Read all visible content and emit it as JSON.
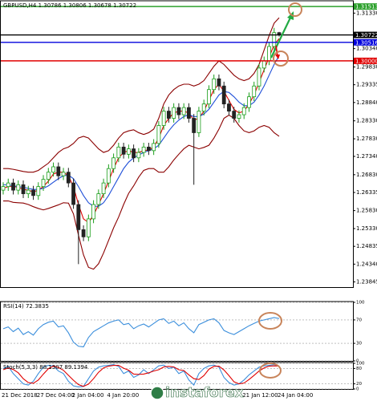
{
  "chart_data": [
    {
      "type": "candlestick",
      "title": "GBPUSD,H4  1.30786 1.30806 1.30678 1.30722",
      "watermark": "instaforex",
      "categories": [
        "21 Dec 2018",
        null,
        null,
        null,
        null,
        null,
        null,
        "27 Dec 04:00",
        null,
        null,
        null,
        null,
        null,
        null,
        "2 Jan 04:00",
        null,
        null,
        null,
        null,
        null,
        null,
        "4 Jan 20:00",
        null,
        null,
        null,
        null,
        null,
        null,
        null,
        null,
        null,
        null,
        null,
        null,
        null,
        null,
        null,
        null,
        null,
        null,
        null,
        null,
        null,
        null,
        null,
        null,
        null,
        null,
        "21 Jan 12:00",
        null,
        null,
        null,
        null,
        null,
        null,
        "24 Jan 04:00"
      ],
      "open": [
        1.264,
        1.265,
        1.266,
        1.264,
        1.2655,
        1.263,
        1.264,
        1.2625,
        1.265,
        1.267,
        1.269,
        1.2705,
        1.268,
        1.269,
        1.266,
        1.26,
        1.253,
        1.251,
        1.256,
        1.26,
        1.263,
        1.266,
        1.27,
        1.273,
        1.276,
        1.274,
        1.2755,
        1.273,
        1.2745,
        1.276,
        1.275,
        1.277,
        1.282,
        1.286,
        1.284,
        1.287,
        1.285,
        1.287,
        1.284,
        1.28,
        1.286,
        1.288,
        1.292,
        1.295,
        1.293,
        1.288,
        1.286,
        1.284,
        1.285,
        1.287,
        1.29,
        1.293,
        1.298,
        1.3,
        1.304,
        1.30786
      ],
      "high": [
        1.2662,
        1.2672,
        1.2672,
        1.2667,
        1.2667,
        1.2652,
        1.2652,
        1.2662,
        1.2682,
        1.2702,
        1.2717,
        1.2717,
        1.2702,
        1.2702,
        1.2672,
        1.2612,
        1.2542,
        1.2572,
        1.2612,
        1.2642,
        1.2672,
        1.2712,
        1.2742,
        1.2772,
        1.2772,
        1.2767,
        1.2767,
        1.2757,
        1.2772,
        1.2772,
        1.2782,
        1.2832,
        1.2872,
        1.2872,
        1.2882,
        1.2882,
        1.2882,
        1.2882,
        1.2852,
        1.2872,
        1.2892,
        1.2932,
        1.2962,
        1.2962,
        1.2942,
        1.2892,
        1.2872,
        1.2862,
        1.2882,
        1.2912,
        1.2942,
        1.2992,
        1.3012,
        1.3052,
        1.3092,
        1.30806
      ],
      "low": [
        1.2628,
        1.2638,
        1.2628,
        1.2628,
        1.2618,
        1.2618,
        1.2613,
        1.2613,
        1.2638,
        1.2658,
        1.2678,
        1.2668,
        1.2668,
        1.2648,
        1.2588,
        1.2434,
        1.2498,
        1.2498,
        1.2548,
        1.2588,
        1.2618,
        1.2648,
        1.2688,
        1.2718,
        1.2728,
        1.2728,
        1.2718,
        1.2718,
        1.2733,
        1.2738,
        1.2738,
        1.2758,
        1.2808,
        1.2828,
        1.2828,
        1.2838,
        1.2838,
        1.2828,
        1.2655,
        1.2788,
        1.2848,
        1.2868,
        1.2908,
        1.2918,
        1.2868,
        1.2848,
        1.2828,
        1.2828,
        1.2838,
        1.2858,
        1.2888,
        1.2918,
        1.2968,
        1.2988,
        1.3028,
        1.30678
      ],
      "close": [
        1.265,
        1.266,
        1.264,
        1.2655,
        1.263,
        1.264,
        1.2625,
        1.265,
        1.267,
        1.269,
        1.2705,
        1.268,
        1.269,
        1.266,
        1.26,
        1.253,
        1.251,
        1.256,
        1.26,
        1.263,
        1.266,
        1.27,
        1.273,
        1.276,
        1.274,
        1.2755,
        1.273,
        1.2745,
        1.276,
        1.275,
        1.277,
        1.282,
        1.286,
        1.284,
        1.287,
        1.285,
        1.287,
        1.284,
        1.28,
        1.286,
        1.288,
        1.292,
        1.295,
        1.293,
        1.288,
        1.286,
        1.284,
        1.285,
        1.287,
        1.29,
        1.293,
        1.298,
        1.3,
        1.304,
        1.30786,
        1.30722
      ],
      "up_color": "#1a9e1a",
      "down_color": "#222222",
      "series": [
        {
          "color": "#8b0000",
          "values": [
            1.27,
            1.27,
            1.2698,
            1.2695,
            1.2692,
            1.269,
            1.269,
            1.2695,
            1.2705,
            1.2715,
            1.273,
            1.2745,
            1.2755,
            1.276,
            1.277,
            1.2785,
            1.279,
            1.2785,
            1.277,
            1.2755,
            1.2745,
            1.275,
            1.2765,
            1.2785,
            1.28,
            1.2805,
            1.2808,
            1.28,
            1.2795,
            1.28,
            1.281,
            1.284,
            1.288,
            1.2905,
            1.292,
            1.293,
            1.2935,
            1.2935,
            1.293,
            1.2935,
            1.2945,
            1.2965,
            1.2985,
            1.3,
            1.299,
            1.2975,
            1.296,
            1.295,
            1.2945,
            1.295,
            1.2965,
            1.299,
            1.303,
            1.307,
            1.3105,
            1.312
          ]
        },
        {
          "color": "#8b0000",
          "values": [
            1.261,
            1.261,
            1.2606,
            1.2605,
            1.2604,
            1.26,
            1.2594,
            1.2589,
            1.2585,
            1.2589,
            1.2594,
            1.2599,
            1.2605,
            1.2604,
            1.2574,
            1.2515,
            1.246,
            1.2425,
            1.242,
            1.2435,
            1.2465,
            1.25,
            1.2535,
            1.2565,
            1.26,
            1.2631,
            1.2652,
            1.2676,
            1.2695,
            1.27,
            1.27,
            1.269,
            1.269,
            1.2705,
            1.2724,
            1.274,
            1.2755,
            1.2765,
            1.276,
            1.2755,
            1.2759,
            1.2765,
            1.2785,
            1.281,
            1.284,
            1.2849,
            1.284,
            1.282,
            1.2805,
            1.28,
            1.2805,
            1.2815,
            1.282,
            1.2815,
            1.28,
            1.279
          ]
        },
        {
          "color": "#e00000",
          "values": [
            1.2645,
            1.265,
            1.265,
            1.2648,
            1.2642,
            1.264,
            1.2635,
            1.264,
            1.265,
            1.2665,
            1.2685,
            1.269,
            1.269,
            1.268,
            1.265,
            1.26,
            1.256,
            1.255,
            1.257,
            1.26,
            1.263,
            1.2665,
            1.27,
            1.273,
            1.2745,
            1.275,
            1.2745,
            1.2745,
            1.275,
            1.2752,
            1.276,
            1.2785,
            1.282,
            1.284,
            1.2855,
            1.286,
            1.286,
            1.2855,
            1.2835,
            1.284,
            1.286,
            1.289,
            1.292,
            1.2935,
            1.2915,
            1.289,
            1.2865,
            1.2855,
            1.286,
            1.288,
            1.2905,
            1.294,
            1.2975,
            1.301,
            1.3045,
            1.3062
          ]
        },
        {
          "color": "#1f4fd8",
          "values": [
            1.2655,
            1.2655,
            1.2652,
            1.265,
            1.2648,
            1.2645,
            1.2642,
            1.2642,
            1.2645,
            1.2652,
            1.2662,
            1.2672,
            1.268,
            1.2682,
            1.2672,
            1.265,
            1.2625,
            1.2605,
            1.2595,
            1.2595,
            1.2605,
            1.2625,
            1.265,
            1.2675,
            1.27,
            1.2718,
            1.273,
            1.2738,
            1.2745,
            1.275,
            1.2755,
            1.2765,
            1.2785,
            1.2805,
            1.2822,
            1.2835,
            1.2845,
            1.285,
            1.2845,
            1.2845,
            1.2852,
            1.2865,
            1.2885,
            1.2905,
            1.2915,
            1.2912,
            1.29,
            1.2885,
            1.2875,
            1.2875,
            1.2885,
            1.2905,
            1.293,
            1.296,
            1.299,
            1.3015
          ]
        }
      ],
      "levels": [
        {
          "value": 1.31513,
          "label": "1.31513",
          "color": "#2ca02c"
        },
        {
          "value": 1.30722,
          "label": "1.30722",
          "color": "#000000"
        },
        {
          "value": 1.30516,
          "label": "1.30516",
          "color": "#0000dd"
        },
        {
          "value": 1.3,
          "label": "1.30000",
          "color": "#e00000"
        }
      ],
      "ylim": [
        1.237,
        1.3165
      ],
      "yticks": [
        {
          "value": 1.3133,
          "label": "1.31330"
        },
        {
          "value": 1.3034,
          "label": "1.30340"
        },
        {
          "value": 1.2983,
          "label": "1.29830"
        },
        1.29335,
        {
          "value": 1.2884,
          "label": "1.28840"
        },
        {
          "value": 1.2833,
          "label": "1.28330"
        },
        {
          "value": 1.2783,
          "label": "1.27830"
        },
        {
          "value": 1.2734,
          "label": "1.27340"
        },
        {
          "value": 1.2683,
          "label": "1.26830"
        },
        1.26335,
        {
          "value": 1.2583,
          "label": "1.25830"
        },
        {
          "value": 1.2533,
          "label": "1.25330"
        },
        1.24835,
        {
          "value": 1.2434,
          "label": "1.24340"
        },
        1.23845
      ],
      "grid": false
    },
    {
      "type": "line",
      "title": "RSI(14) 72.3835",
      "series": [
        {
          "color": "#3c8fdc",
          "values": [
            55,
            58,
            50,
            56,
            45,
            50,
            44,
            55,
            62,
            66,
            68,
            58,
            60,
            48,
            32,
            25,
            24,
            40,
            50,
            55,
            60,
            65,
            68,
            70,
            62,
            64,
            55,
            60,
            63,
            58,
            64,
            70,
            72,
            64,
            68,
            60,
            65,
            55,
            48,
            62,
            66,
            70,
            72,
            65,
            52,
            48,
            45,
            50,
            55,
            60,
            64,
            68,
            70,
            72,
            74,
            72.3835
          ]
        }
      ],
      "ylim": [
        0,
        100
      ],
      "yticks": [
        100,
        70,
        30,
        0
      ],
      "grid": true
    },
    {
      "type": "line",
      "title": "Stoch(5,3,3) 88.1307 89.1394",
      "series": [
        {
          "color": "#3c8fdc",
          "values": [
            80,
            88,
            60,
            40,
            20,
            15,
            30,
            60,
            85,
            92,
            90,
            70,
            60,
            30,
            12,
            8,
            10,
            40,
            70,
            85,
            90,
            92,
            95,
            88,
            60,
            70,
            45,
            55,
            75,
            60,
            75,
            90,
            93,
            80,
            85,
            60,
            70,
            35,
            15,
            60,
            80,
            90,
            93,
            85,
            45,
            25,
            15,
            20,
            35,
            55,
            70,
            85,
            90,
            92,
            95,
            88.1307
          ]
        },
        {
          "color": "#e00000",
          "values": [
            75,
            82,
            76,
            63,
            40,
            25,
            22,
            35,
            58,
            79,
            89,
            84,
            73,
            53,
            34,
            17,
            10,
            19,
            40,
            65,
            82,
            89,
            92,
            92,
            81,
            73,
            58,
            57,
            58,
            63,
            70,
            75,
            86,
            88,
            86,
            75,
            72,
            55,
            40,
            37,
            52,
            77,
            88,
            89,
            74,
            52,
            28,
            20,
            23,
            37,
            53,
            70,
            82,
            89,
            90,
            89.1394
          ]
        }
      ],
      "ylim": [
        0,
        100
      ],
      "yticks": [
        100,
        80,
        20,
        0
      ],
      "grid": true
    }
  ]
}
